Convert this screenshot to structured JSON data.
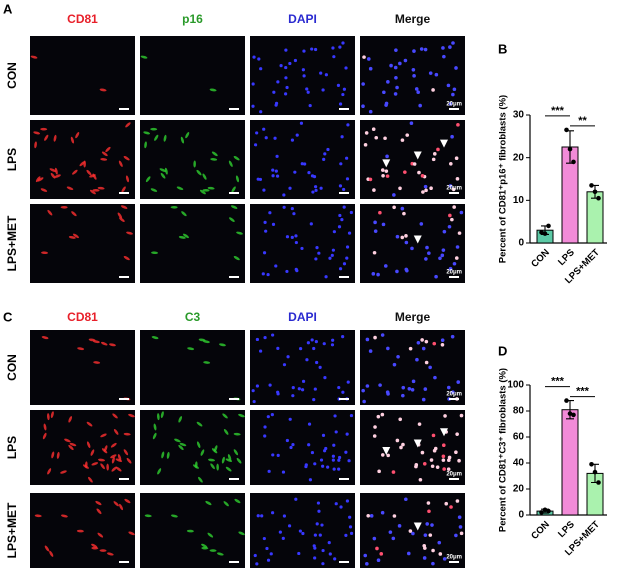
{
  "panels": [
    {
      "letter": "A",
      "channels": [
        "CD81",
        "p16",
        "DAPI",
        "Merge"
      ],
      "channel_colors": [
        "#e8202a",
        "#2a9a2a",
        "#2a2ad0",
        "#111111"
      ],
      "rows": [
        "CON",
        "LPS",
        "LPS+MET"
      ],
      "scale_bar": "20μm"
    },
    {
      "letter": "C",
      "channels": [
        "CD81",
        "C3",
        "DAPI",
        "Merge"
      ],
      "channel_colors": [
        "#e8202a",
        "#2a9a2a",
        "#2a2ad0",
        "#111111"
      ],
      "rows": [
        "CON",
        "LPS",
        "LPS+MET"
      ],
      "scale_bar": "20μm"
    }
  ],
  "chart_data": [
    {
      "type": "bar",
      "letter": "B",
      "y_label": "Percent of CD81⁺p16⁺ fibroblasts (%)",
      "categories": [
        "CON",
        "LPS",
        "LPS+MET"
      ],
      "values": [
        3,
        22.5,
        12
      ],
      "errors": [
        1,
        3.8,
        1.5
      ],
      "points": [
        [
          2.5,
          2.2,
          4
        ],
        [
          26.5,
          22,
          19
        ],
        [
          13.5,
          12,
          10.5
        ]
      ],
      "colors": [
        "#5ccaa6",
        "#f28bd8",
        "#aaf2ae"
      ],
      "significance": [
        "***",
        "**"
      ],
      "ylim": [
        0,
        30
      ],
      "yticks": [
        0,
        10,
        20,
        30
      ]
    },
    {
      "type": "bar",
      "letter": "D",
      "y_label": "Percent of CD81⁺C3⁺ fibroblasts (%)",
      "categories": [
        "CON",
        "LPS",
        "LPS+MET"
      ],
      "values": [
        3,
        81,
        32
      ],
      "errors": [
        1.5,
        7,
        7
      ],
      "points": [
        [
          2,
          4,
          3
        ],
        [
          88,
          78,
          77
        ],
        [
          39,
          33,
          25
        ]
      ],
      "colors": [
        "#5ccaa6",
        "#f28bd8",
        "#aaf2ae"
      ],
      "significance": [
        "***",
        "***"
      ],
      "ylim": [
        0,
        100
      ],
      "yticks": [
        0,
        20,
        40,
        60,
        80,
        100
      ]
    }
  ]
}
